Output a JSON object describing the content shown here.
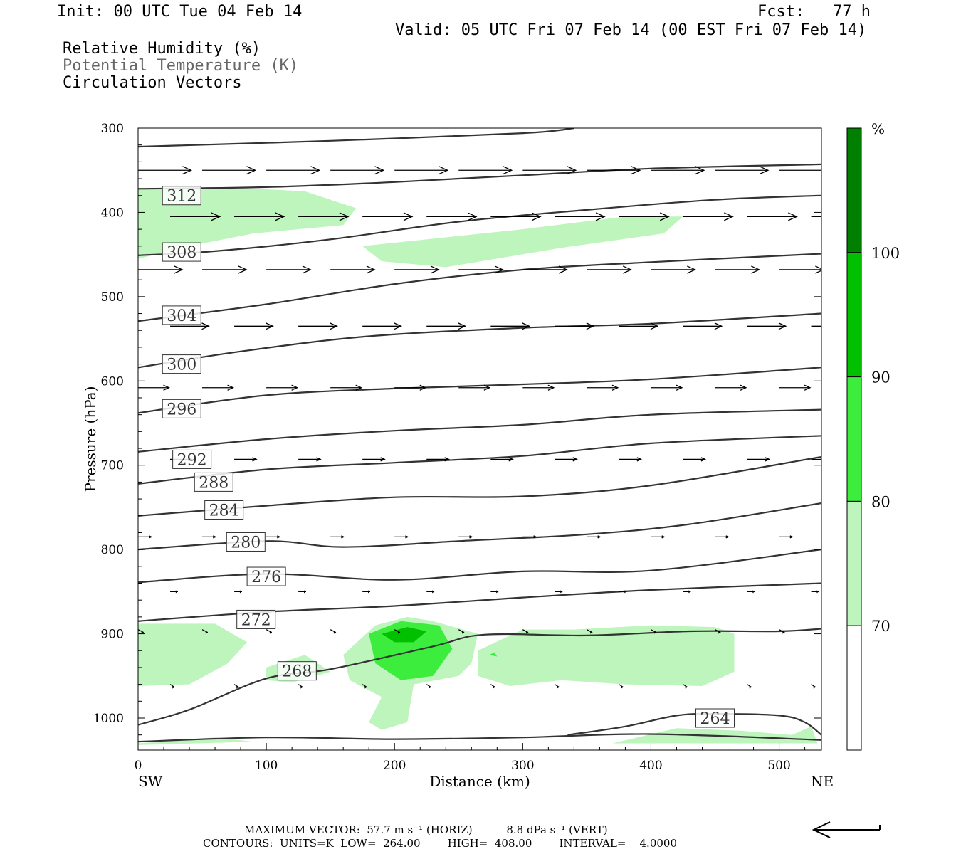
{
  "header": {
    "init": "Init: 00 UTC Tue 04 Feb 14",
    "fcst": "Fcst:   77 h",
    "valid": "Valid: 05 UTC Fri 07 Feb 14 (00 EST Fri 07 Feb 14)",
    "fields": [
      "Relative Humidity (%)",
      "Potential Temperature (K)",
      "Circulation Vectors"
    ]
  },
  "footer": {
    "vector_line": "MAXIMUM VECTOR:  57.7 m s⁻¹ (HORIZ)          8.8 dPa s⁻¹ (VERT)",
    "contour_line": "CONTOURS:  UNITS=K  LOW=  264.00        HIGH=  408.00        INTERVAL=    4.0000"
  },
  "colors": {
    "rh70": "#bdf5bd",
    "rh80": "#3ded3d",
    "rh90": "#00c000",
    "rh100": "#007f00",
    "contour": "#333333",
    "vector": "#000000"
  },
  "chart_data": {
    "type": "contour",
    "xlabel": "Distance (km)",
    "ylabel": "Pressure (hPa)",
    "xlim": [
      0,
      533
    ],
    "ylim": [
      1038,
      300
    ],
    "x_ticks": [
      0,
      100,
      200,
      300,
      400,
      500
    ],
    "y_ticks": [
      300,
      400,
      500,
      600,
      700,
      800,
      900,
      1000
    ],
    "x_end_labels": [
      "SW",
      "NE"
    ],
    "colorbar": {
      "unit": "%",
      "levels": [
        70,
        80,
        90,
        100
      ]
    },
    "theta_contours": [
      {
        "value": 312,
        "label_at": [
          34,
          380
        ],
        "points": [
          [
            0,
            372
          ],
          [
            100,
            370
          ],
          [
            200,
            364
          ],
          [
            300,
            356
          ],
          [
            400,
            348
          ],
          [
            533,
            343
          ]
        ]
      },
      {
        "value": 308,
        "label_at": [
          34,
          447
        ],
        "points": [
          [
            0,
            451
          ],
          [
            60,
            446
          ],
          [
            150,
            432
          ],
          [
            250,
            411
          ],
          [
            350,
            397
          ],
          [
            450,
            385
          ],
          [
            533,
            380
          ]
        ]
      },
      {
        "value": 304,
        "label_at": [
          34,
          522
        ],
        "points": [
          [
            0,
            529
          ],
          [
            100,
            509
          ],
          [
            200,
            485
          ],
          [
            300,
            468
          ],
          [
            400,
            459
          ],
          [
            533,
            449
          ]
        ]
      },
      {
        "value": 300,
        "label_at": [
          34,
          580
        ],
        "points": [
          [
            0,
            584
          ],
          [
            80,
            565
          ],
          [
            180,
            547
          ],
          [
            300,
            537
          ],
          [
            400,
            532
          ],
          [
            533,
            520
          ]
        ]
      },
      {
        "value": 296,
        "label_at": [
          34,
          633
        ],
        "points": [
          [
            0,
            638
          ],
          [
            100,
            617
          ],
          [
            200,
            609
          ],
          [
            300,
            604
          ],
          [
            400,
            598
          ],
          [
            533,
            584
          ]
        ]
      },
      {
        "value": 292,
        "label_at": [
          42,
          693
        ],
        "points": [
          [
            0,
            684
          ],
          [
            100,
            669
          ],
          [
            200,
            659
          ],
          [
            300,
            652
          ],
          [
            400,
            640
          ],
          [
            533,
            634
          ]
        ]
      },
      {
        "value": 288,
        "label_at": [
          59,
          720
        ],
        "points": [
          [
            0,
            722
          ],
          [
            100,
            705
          ],
          [
            200,
            697
          ],
          [
            300,
            689
          ],
          [
            400,
            674
          ],
          [
            533,
            665
          ]
        ]
      },
      {
        "value": 284,
        "label_at": [
          67,
          753
        ],
        "points": [
          [
            0,
            760
          ],
          [
            100,
            748
          ],
          [
            200,
            738
          ],
          [
            300,
            737
          ],
          [
            400,
            724
          ],
          [
            533,
            690
          ]
        ]
      },
      {
        "value": 280,
        "label_at": [
          84,
          791
        ],
        "points": [
          [
            0,
            800
          ],
          [
            100,
            790
          ],
          [
            160,
            797
          ],
          [
            250,
            790
          ],
          [
            350,
            782
          ],
          [
            430,
            770
          ],
          [
            533,
            745
          ]
        ]
      },
      {
        "value": 276,
        "label_at": [
          100,
          832
        ],
        "points": [
          [
            0,
            839
          ],
          [
            100,
            829
          ],
          [
            200,
            836
          ],
          [
            300,
            826
          ],
          [
            400,
            825
          ],
          [
            533,
            800
          ]
        ]
      },
      {
        "value": 272,
        "label_at": [
          92,
          883
        ],
        "points": [
          [
            0,
            885
          ],
          [
            100,
            874
          ],
          [
            200,
            867
          ],
          [
            300,
            857
          ],
          [
            400,
            848
          ],
          [
            533,
            840
          ]
        ]
      },
      {
        "value": 268,
        "label_at": [
          124,
          944
        ],
        "points": [
          [
            0,
            1008
          ],
          [
            40,
            990
          ],
          [
            100,
            953
          ],
          [
            150,
            942
          ],
          [
            230,
            915
          ],
          [
            270,
            901
          ],
          [
            350,
            902
          ],
          [
            430,
            897
          ],
          [
            500,
            897
          ],
          [
            533,
            894
          ]
        ]
      },
      {
        "value": 264,
        "label_at": [
          450,
          1000
        ],
        "points": [
          [
            335,
            1020
          ],
          [
            380,
            1010
          ],
          [
            420,
            997
          ],
          [
            450,
            995
          ],
          [
            500,
            997
          ],
          [
            520,
            1005
          ],
          [
            533,
            1020
          ]
        ]
      }
    ],
    "surface_line": [
      [
        0,
        1028
      ],
      [
        100,
        1023
      ],
      [
        200,
        1025
      ],
      [
        300,
        1023
      ],
      [
        400,
        1019
      ],
      [
        533,
        1026
      ]
    ],
    "extra_top_line": [
      [
        0,
        322
      ],
      [
        150,
        315
      ],
      [
        300,
        306
      ],
      [
        340,
        300
      ]
    ],
    "rh_regions": [
      {
        "level": 70,
        "points": [
          [
            0,
            371
          ],
          [
            80,
            371
          ],
          [
            130,
            375
          ],
          [
            170,
            395
          ],
          [
            160,
            415
          ],
          [
            90,
            425
          ],
          [
            40,
            440
          ],
          [
            0,
            455
          ]
        ]
      },
      {
        "level": 70,
        "points": [
          [
            175,
            440
          ],
          [
            300,
            420
          ],
          [
            380,
            405
          ],
          [
            425,
            405
          ],
          [
            410,
            425
          ],
          [
            330,
            442
          ],
          [
            240,
            465
          ],
          [
            190,
            458
          ]
        ]
      },
      {
        "level": 70,
        "points": [
          [
            0,
            888
          ],
          [
            60,
            888
          ],
          [
            85,
            910
          ],
          [
            70,
            935
          ],
          [
            40,
            960
          ],
          [
            0,
            962
          ]
        ]
      },
      {
        "level": 70,
        "points": [
          [
            100,
            940
          ],
          [
            130,
            925
          ],
          [
            150,
            945
          ],
          [
            120,
            958
          ],
          [
            100,
            955
          ]
        ]
      },
      {
        "level": 70,
        "points": [
          [
            160,
            925
          ],
          [
            185,
            890
          ],
          [
            210,
            880
          ],
          [
            230,
            885
          ],
          [
            265,
            900
          ],
          [
            260,
            935
          ],
          [
            250,
            950
          ],
          [
            215,
            960
          ],
          [
            210,
            1005
          ],
          [
            190,
            1014
          ],
          [
            180,
            1005
          ],
          [
            190,
            975
          ],
          [
            165,
            955
          ]
        ]
      },
      {
        "level": 70,
        "points": [
          [
            265,
            920
          ],
          [
            300,
            895
          ],
          [
            340,
            895
          ],
          [
            400,
            890
          ],
          [
            450,
            892
          ],
          [
            465,
            900
          ],
          [
            465,
            945
          ],
          [
            440,
            962
          ],
          [
            380,
            960
          ],
          [
            330,
            955
          ],
          [
            290,
            962
          ],
          [
            265,
            950
          ]
        ]
      },
      {
        "level": 70,
        "points": [
          [
            0,
            1030
          ],
          [
            60,
            1023
          ],
          [
            90,
            1028
          ],
          [
            0,
            1032
          ]
        ]
      },
      {
        "level": 70,
        "points": [
          [
            370,
            1030
          ],
          [
            420,
            1012
          ],
          [
            470,
            1015
          ],
          [
            510,
            1020
          ],
          [
            525,
            1010
          ],
          [
            530,
            1030
          ]
        ]
      },
      {
        "level": 80,
        "points": [
          [
            180,
            900
          ],
          [
            205,
            885
          ],
          [
            235,
            890
          ],
          [
            245,
            918
          ],
          [
            230,
            950
          ],
          [
            205,
            955
          ],
          [
            185,
            935
          ]
        ]
      },
      {
        "level": 90,
        "points": [
          [
            190,
            900
          ],
          [
            210,
            892
          ],
          [
            225,
            897
          ],
          [
            215,
            910
          ],
          [
            200,
            910
          ]
        ]
      },
      {
        "level": 80,
        "points": [
          [
            274,
            925
          ],
          [
            278,
            922
          ],
          [
            280,
            927
          ]
        ]
      }
    ],
    "vectors": {
      "rows": [
        {
          "p": 350,
          "u": 48,
          "w": 0
        },
        {
          "p": 405,
          "u": 45,
          "w": 0
        },
        {
          "p": 468,
          "u": 40,
          "w": 0
        },
        {
          "p": 535,
          "u": 35,
          "w": 0
        },
        {
          "p": 608,
          "u": 28,
          "w": 0
        },
        {
          "p": 693,
          "u": 20,
          "w": 0
        },
        {
          "p": 785,
          "u": 12,
          "w": 0
        },
        {
          "p": 850,
          "u": 7,
          "w": 0
        },
        {
          "p": 895,
          "u": 5,
          "w": 1
        },
        {
          "p": 960,
          "u": 4,
          "w": 1
        }
      ],
      "spacing_km": 50,
      "start_km": 0
    }
  }
}
